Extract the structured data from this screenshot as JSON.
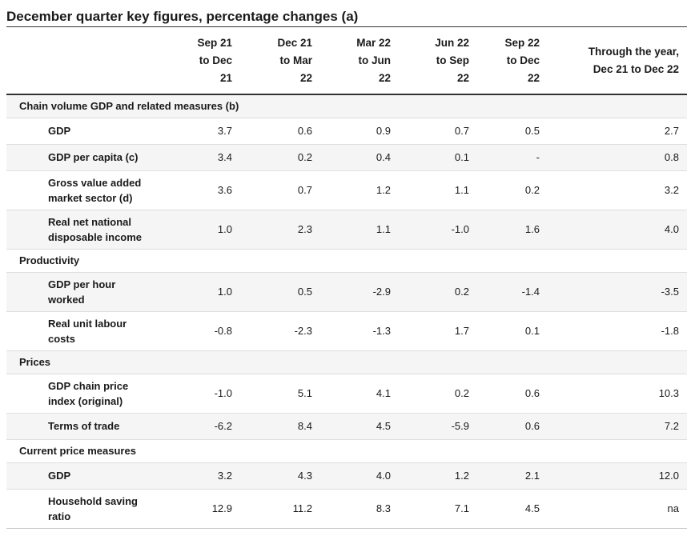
{
  "colors": {
    "rule_dark": "#333333",
    "stripe": "#f5f5f5",
    "row_border": "#dedede",
    "bottom_border": "#c9c9c9",
    "text": "#1a1a1a",
    "background": "#ffffff"
  },
  "chart_data": {
    "type": "table",
    "title": "December quarter key figures, percentage changes (a)",
    "column_headers": [
      [
        "Sep 21",
        "to Dec",
        "21"
      ],
      [
        "Dec 21",
        "to Mar",
        "22"
      ],
      [
        "Mar 22",
        "to Jun",
        "22"
      ],
      [
        "Jun 22",
        "to Sep",
        "22"
      ],
      [
        "Sep 22",
        "to Dec",
        "22"
      ],
      [
        "Through the year,",
        "Dec 21 to Dec 22"
      ]
    ],
    "sections": [
      {
        "label": "Chain volume GDP and related measures (b)",
        "rows": [
          {
            "label": [
              "GDP"
            ],
            "values": [
              "3.7",
              "0.6",
              "0.9",
              "0.7",
              "0.5",
              "2.7"
            ]
          },
          {
            "label": [
              "GDP per capita (c)"
            ],
            "values": [
              "3.4",
              "0.2",
              "0.4",
              "0.1",
              "-",
              "0.8"
            ]
          },
          {
            "label": [
              "Gross value added",
              "market sector (d)"
            ],
            "values": [
              "3.6",
              "0.7",
              "1.2",
              "1.1",
              "0.2",
              "3.2"
            ]
          },
          {
            "label": [
              "Real net national",
              "disposable income"
            ],
            "values": [
              "1.0",
              "2.3",
              "1.1",
              "-1.0",
              "1.6",
              "4.0"
            ]
          }
        ]
      },
      {
        "label": "Productivity",
        "rows": [
          {
            "label": [
              "GDP per hour",
              "worked"
            ],
            "values": [
              "1.0",
              "0.5",
              "-2.9",
              "0.2",
              "-1.4",
              "-3.5"
            ]
          },
          {
            "label": [
              "Real unit labour",
              "costs"
            ],
            "values": [
              "-0.8",
              "-2.3",
              "-1.3",
              "1.7",
              "0.1",
              "-1.8"
            ]
          }
        ]
      },
      {
        "label": "Prices",
        "rows": [
          {
            "label": [
              "GDP chain price",
              "index (original)"
            ],
            "values": [
              "-1.0",
              "5.1",
              "4.1",
              "0.2",
              "0.6",
              "10.3"
            ]
          },
          {
            "label": [
              "Terms of trade"
            ],
            "values": [
              "-6.2",
              "8.4",
              "4.5",
              "-5.9",
              "0.6",
              "7.2"
            ]
          }
        ]
      },
      {
        "label": "Current price measures",
        "rows": [
          {
            "label": [
              "GDP"
            ],
            "values": [
              "3.2",
              "4.3",
              "4.0",
              "1.2",
              "2.1",
              "12.0"
            ]
          },
          {
            "label": [
              "Household saving",
              "ratio"
            ],
            "values": [
              "12.9",
              "11.2",
              "8.3",
              "7.1",
              "4.5",
              "na"
            ]
          }
        ]
      }
    ]
  }
}
